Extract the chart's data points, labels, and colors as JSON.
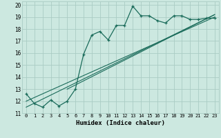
{
  "xlabel": "Humidex (Indice chaleur)",
  "ylabel": "",
  "bg_color": "#cce8e0",
  "grid_color": "#aaccc4",
  "line_color": "#1a6b5a",
  "xlim": [
    -0.5,
    23.5
  ],
  "ylim": [
    11,
    20.3
  ],
  "xticks": [
    0,
    1,
    2,
    3,
    4,
    5,
    6,
    7,
    8,
    9,
    10,
    11,
    12,
    13,
    14,
    15,
    16,
    17,
    18,
    19,
    20,
    21,
    22,
    23
  ],
  "yticks": [
    11,
    12,
    13,
    14,
    15,
    16,
    17,
    18,
    19,
    20
  ],
  "curve1_x": [
    0,
    1,
    2,
    3,
    4,
    5,
    6,
    7,
    8,
    9,
    10,
    11,
    12,
    13,
    14,
    15,
    16,
    17,
    18,
    19,
    20,
    21,
    22,
    23
  ],
  "curve1_y": [
    12.6,
    11.8,
    11.5,
    12.1,
    11.6,
    12.0,
    13.0,
    15.9,
    17.5,
    17.8,
    17.1,
    18.3,
    18.3,
    19.9,
    19.1,
    19.1,
    18.7,
    18.5,
    19.1,
    19.1,
    18.8,
    18.8,
    18.9,
    18.9
  ],
  "curve2_x": [
    0,
    23
  ],
  "curve2_y": [
    12.0,
    19.0
  ],
  "curve3_x": [
    0,
    23
  ],
  "curve3_y": [
    11.5,
    19.2
  ],
  "curve4_x": [
    5,
    23
  ],
  "curve4_y": [
    13.0,
    19.2
  ]
}
